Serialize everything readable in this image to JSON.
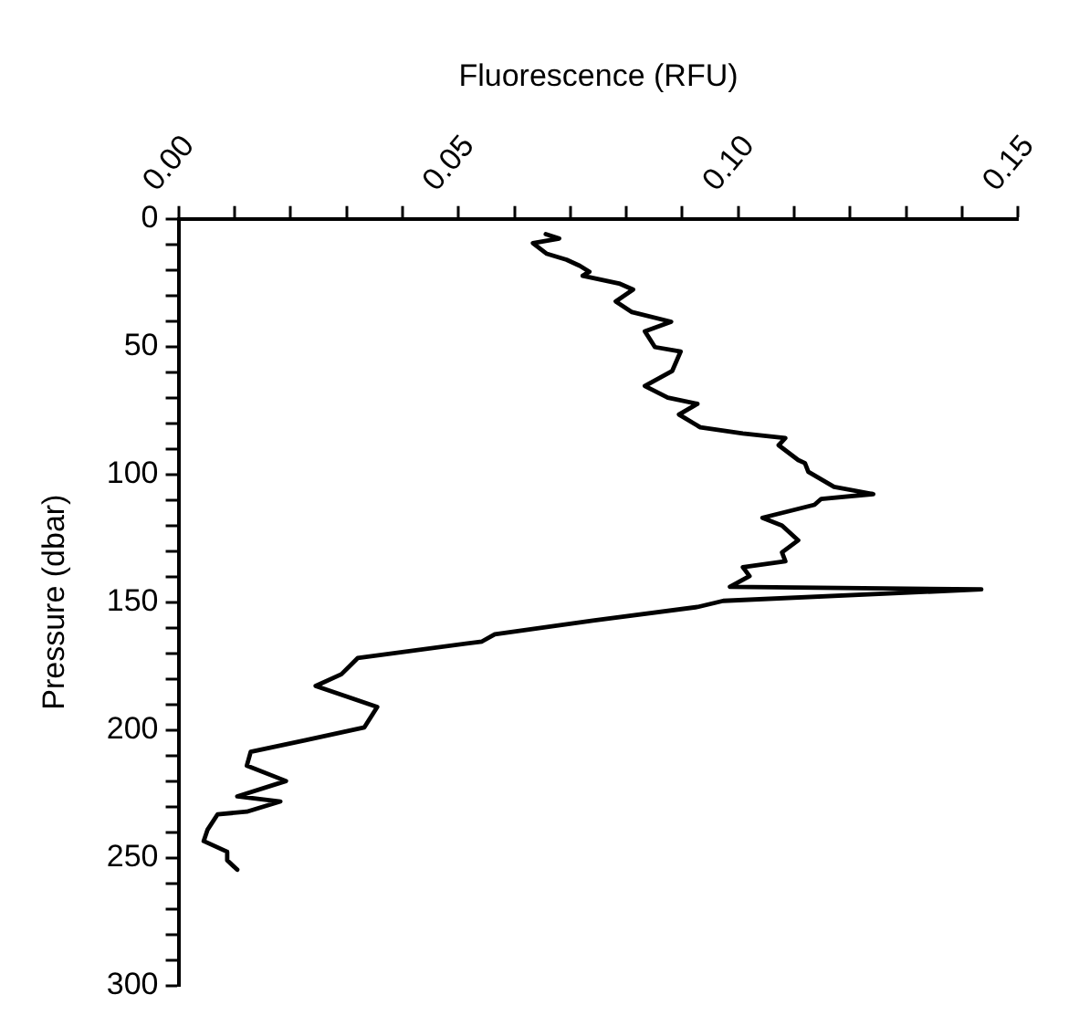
{
  "chart_data": {
    "type": "line",
    "xlabel": "Fluorescence (RFU)",
    "ylabel": "Pressure (dbar)",
    "xlim": [
      0,
      0.15
    ],
    "ylim": [
      300,
      0
    ],
    "xticks": [
      {
        "value": 0,
        "label": "0.00"
      },
      {
        "value": 0.01,
        "label": null
      },
      {
        "value": 0.02,
        "label": null
      },
      {
        "value": 0.03,
        "label": null
      },
      {
        "value": 0.04,
        "label": null
      },
      {
        "value": 0.05,
        "label": "0.05"
      },
      {
        "value": 0.06,
        "label": null
      },
      {
        "value": 0.07,
        "label": null
      },
      {
        "value": 0.08,
        "label": null
      },
      {
        "value": 0.09,
        "label": null
      },
      {
        "value": 0.1,
        "label": "0.10"
      },
      {
        "value": 0.11,
        "label": null
      },
      {
        "value": 0.12,
        "label": null
      },
      {
        "value": 0.13,
        "label": null
      },
      {
        "value": 0.14,
        "label": null
      },
      {
        "value": 0.15,
        "label": "0.15"
      }
    ],
    "yticks": [
      0,
      {
        "value": 10,
        "label": null
      },
      {
        "value": 20,
        "label": null
      },
      {
        "value": 30,
        "label": null
      },
      {
        "value": 40,
        "label": null
      },
      50,
      {
        "value": 60,
        "label": null
      },
      {
        "value": 70,
        "label": null
      },
      {
        "value": 80,
        "label": null
      },
      {
        "value": 90,
        "label": null
      },
      100,
      {
        "value": 110,
        "label": null
      },
      {
        "value": 120,
        "label": null
      },
      {
        "value": 130,
        "label": null
      },
      {
        "value": 140,
        "label": null
      },
      150,
      {
        "value": 160,
        "label": null
      },
      {
        "value": 170,
        "label": null
      },
      {
        "value": 180,
        "label": null
      },
      {
        "value": 190,
        "label": null
      },
      200,
      {
        "value": 210,
        "label": null
      },
      {
        "value": 220,
        "label": null
      },
      {
        "value": 230,
        "label": null
      },
      {
        "value": 240,
        "label": null
      },
      250,
      {
        "value": 260,
        "label": null
      },
      {
        "value": 270,
        "label": null
      },
      {
        "value": 280,
        "label": null
      },
      {
        "value": 290,
        "label": null
      },
      300
    ],
    "grid": false,
    "legend": false,
    "marker": "none",
    "line_style": "solid",
    "series": [
      {
        "color": "#000000",
        "x": [
          0.0656,
          0.068,
          0.0633,
          0.0658,
          0.0693,
          0.0717,
          0.0734,
          0.0722,
          0.0787,
          0.0812,
          0.0781,
          0.081,
          0.088,
          0.0833,
          0.0851,
          0.0897,
          0.0882,
          0.0833,
          0.0874,
          0.0927,
          0.0894,
          0.0932,
          0.1008,
          0.1084,
          0.1072,
          0.1107,
          0.1119,
          0.1125,
          0.1171,
          0.1241,
          0.1148,
          0.1136,
          0.1043,
          0.1078,
          0.1107,
          0.1078,
          0.1084,
          0.1008,
          0.102,
          0.0985,
          0.1434,
          0.0973,
          0.0927,
          0.074,
          0.0565,
          0.0542,
          0.032,
          0.0291,
          0.0245,
          0.0355,
          0.0332,
          0.0227,
          0.0129,
          0.0122,
          0.0192,
          0.0105,
          0.0182,
          0.0122,
          0.007,
          0.0052,
          0.0045,
          0.0087,
          0.0087,
          0.0105
        ],
        "values": [
          6,
          7.7,
          9.5,
          13.7,
          16,
          18.4,
          20.7,
          22.3,
          25.3,
          27.7,
          32.3,
          36.5,
          40.3,
          44,
          50.2,
          51.9,
          59.5,
          65.4,
          70,
          72.4,
          76.6,
          81.6,
          84,
          85.8,
          88.6,
          94.4,
          95.6,
          99,
          104.9,
          107.7,
          109.6,
          111.9,
          117,
          120,
          125.8,
          130.5,
          134,
          136.3,
          139.8,
          144,
          145,
          149.5,
          151.9,
          157.2,
          162.6,
          165.4,
          171.9,
          178.2,
          182.8,
          191,
          199,
          204,
          208.6,
          214,
          220,
          226,
          228,
          232,
          233,
          239,
          243.5,
          247.7,
          251,
          254.7
        ]
      }
    ]
  }
}
